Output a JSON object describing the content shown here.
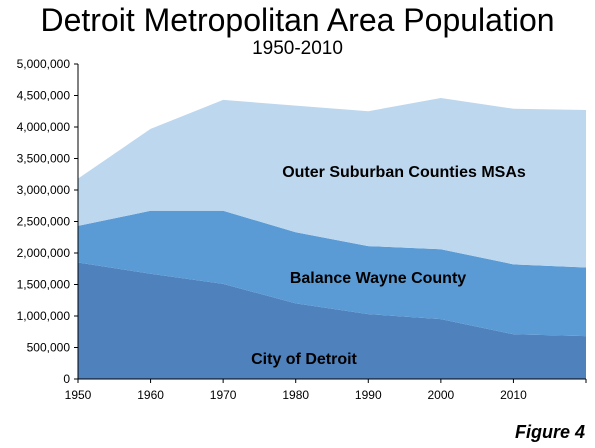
{
  "chart_data": {
    "type": "area",
    "stacked": true,
    "title": "Detroit Metropolitan Area Population",
    "subtitle": "1950-2010",
    "x": [
      1950,
      1960,
      1970,
      1980,
      1990,
      2000,
      2010,
      2020
    ],
    "x_tick_labels": [
      "1950",
      "1960",
      "1970",
      "1980",
      "1990",
      "2000",
      "2010",
      ""
    ],
    "ylim": [
      0,
      5000000
    ],
    "y_tick_labels": [
      "0",
      "500,000",
      "1,000,000",
      "1,500,000",
      "2,000,000",
      "2,500,000",
      "3,000,000",
      "3,500,000",
      "4,000,000",
      "4,500,000",
      "5,000,000"
    ],
    "grid": false,
    "legend": "none",
    "series": [
      {
        "name": "City of Detroit",
        "color": "#4f81bd",
        "values": [
          1850000,
          1670000,
          1510000,
          1200000,
          1030000,
          950000,
          710000,
          680000
        ]
      },
      {
        "name": "Balance Wayne County",
        "color": "#5b9bd5",
        "values": [
          580000,
          1000000,
          1160000,
          1130000,
          1080000,
          1110000,
          1110000,
          1090000
        ]
      },
      {
        "name": "Outer Suburban Counties MSAs",
        "color": "#bdd7ee",
        "values": [
          750000,
          1300000,
          1760000,
          2010000,
          2140000,
          2400000,
          2470000,
          2500000
        ]
      }
    ]
  },
  "figure_label": "Figure 4"
}
